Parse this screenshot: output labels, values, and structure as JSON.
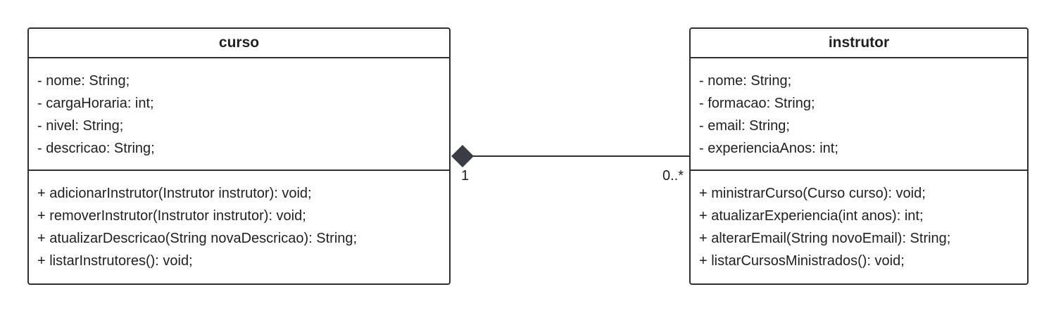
{
  "diagram": {
    "classes": [
      {
        "name": "curso",
        "attributes": [
          "- nome: String;",
          "- cargaHoraria: int;",
          "- nivel: String;",
          "- descricao: String;"
        ],
        "operations": [
          "+ adicionarInstrutor(Instrutor instrutor): void;",
          "+ removerInstrutor(Instrutor instrutor): void;",
          "+ atualizarDescricao(String novaDescricao): String;",
          "+ listarInstrutores(): void;"
        ]
      },
      {
        "name": "instrutor",
        "attributes": [
          "- nome: String;",
          "- formacao: String;",
          "- email: String;",
          "- experienciaAnos: int;"
        ],
        "operations": [
          "+ ministrarCurso(Curso curso): void;",
          "+ atualizarExperiencia(int anos): int;",
          "+ alterarEmail(String novoEmail): String;",
          "+ listarCursosMinistrados(): void;"
        ]
      }
    ],
    "association": {
      "left_multiplicity": "1",
      "right_multiplicity": "0..*"
    }
  }
}
